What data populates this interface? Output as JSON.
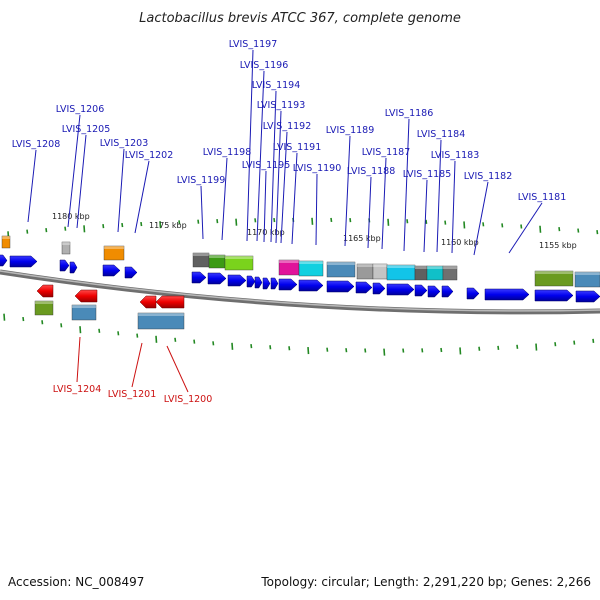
{
  "title": "Lactobacillus brevis ATCC 367, complete genome",
  "footer": {
    "accession": "Accession: NC_008497",
    "summary": "Topology: circular; Length: 2,291,220 bp; Genes: 2,266"
  },
  "scale_labels": [
    "1155 kbp",
    "1160 kbp",
    "1165 kbp",
    "1170 kbp",
    "1175 kbp",
    "1180 kbp"
  ],
  "genes_forward": [
    "LVIS_1181",
    "LVIS_1182",
    "LVIS_1183",
    "LVIS_1184",
    "LVIS_1185",
    "LVIS_1186",
    "LVIS_1187",
    "LVIS_1188",
    "LVIS_1189",
    "LVIS_1190",
    "LVIS_1191",
    "LVIS_1192",
    "LVIS_1193",
    "LVIS_1194",
    "LVIS_1195",
    "LVIS_1196",
    "LVIS_1197",
    "LVIS_1198",
    "LVIS_1199",
    "LVIS_1202",
    "LVIS_1203",
    "LVIS_1205",
    "LVIS_1206",
    "LVIS_1208"
  ],
  "genes_reverse": [
    "LVIS_1200",
    "LVIS_1201",
    "LVIS_1204"
  ],
  "colors": {
    "forward_gene": "#1a1ab4",
    "reverse_gene": "#cc1111",
    "cds_arrow": "#0000ee",
    "reverse_arrow": "#ee0000",
    "backbone": "#8a8a8a",
    "tick": "#228822"
  }
}
